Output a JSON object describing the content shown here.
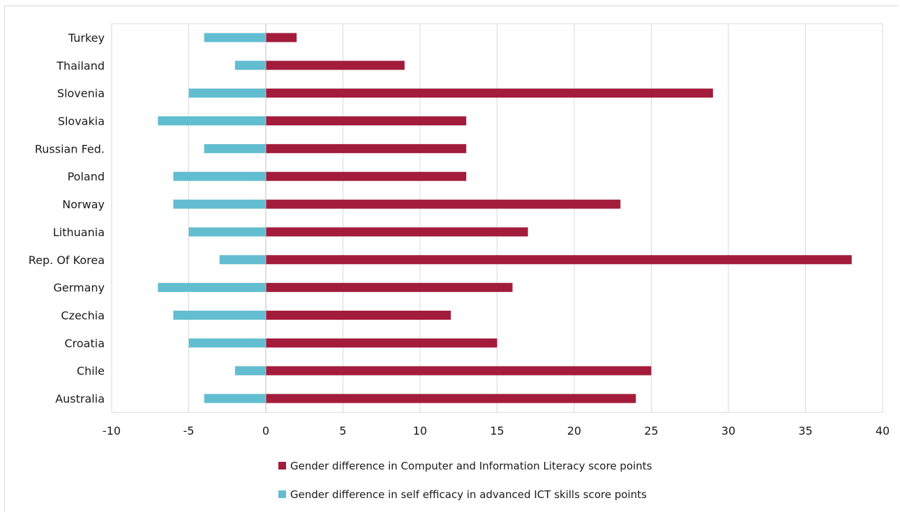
{
  "chart_data": {
    "type": "bar",
    "orientation": "horizontal",
    "categories": [
      "Turkey",
      "Thailand",
      "Slovenia",
      "Slovakia",
      "Russian Fed.",
      "Poland",
      "Norway",
      "Lithuania",
      "Rep. Of Korea",
      "Germany",
      "Czechia",
      "Croatia",
      "Chile",
      "Australia"
    ],
    "series": [
      {
        "name": "Gender difference in Computer and Information Literacy score points",
        "color": "#a31c3c",
        "values": [
          2,
          9,
          29,
          13,
          13,
          13,
          23,
          17,
          38,
          16,
          12,
          15,
          25,
          24
        ]
      },
      {
        "name": "Gender difference in self efficacy in advanced ICT skills score points",
        "color": "#63bdd0",
        "values": [
          -4,
          -2,
          -5,
          -7,
          -4,
          -6,
          -6,
          -5,
          -3,
          -7,
          -6,
          -5,
          -2,
          -4
        ]
      }
    ],
    "xlim": [
      -10,
      40
    ],
    "xticks": [
      -10,
      -5,
      0,
      5,
      10,
      15,
      20,
      25,
      30,
      35,
      40
    ],
    "grid": true,
    "legend_position": "bottom"
  }
}
